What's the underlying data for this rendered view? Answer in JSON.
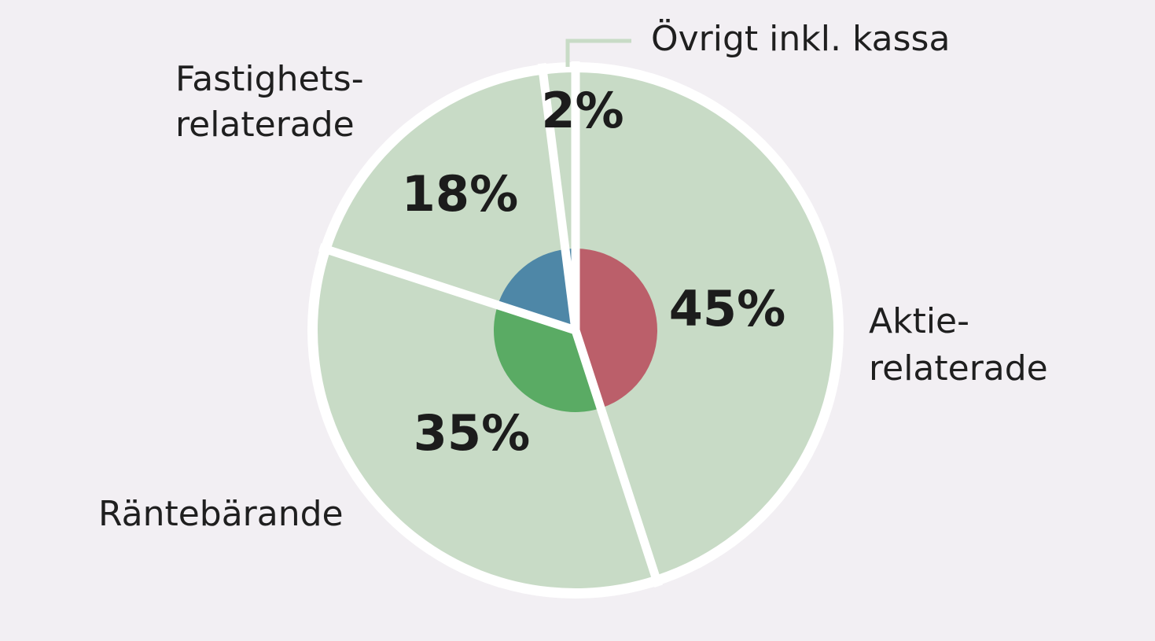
{
  "chart_data": {
    "type": "pie",
    "categories": [
      "Aktierelaterade",
      "Räntebärande",
      "Fastighetsrelaterade",
      "Övrigt inkl. kassa"
    ],
    "values": [
      45,
      35,
      18,
      2
    ],
    "value_labels": [
      "45%",
      "35%",
      "18%",
      "2%"
    ],
    "category_labels": [
      [
        "Aktie-",
        "relaterade"
      ],
      [
        "Räntebärande"
      ],
      [
        "Fastighets-",
        "relaterade"
      ],
      [
        "Övrigt inkl. kassa"
      ]
    ],
    "start": "top",
    "direction": "clockwise",
    "colors": {
      "slice_fill": "#c8dbc6",
      "separator": "#ffffff",
      "background": "#f2eff3",
      "leader_line": "#c8dbc6",
      "inner_aktie": "#bb5f6a",
      "inner_ranta": "#5aab64",
      "inner_fastighet": "#4e87a7",
      "inner_ovrigt": "#4e87a7"
    }
  }
}
